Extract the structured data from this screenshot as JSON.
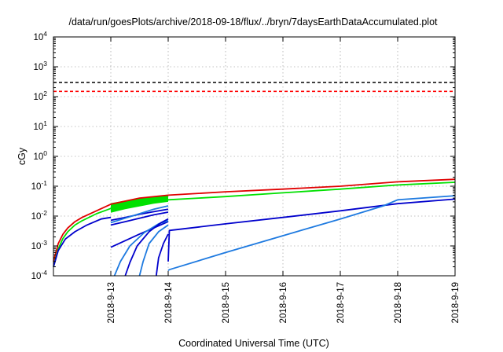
{
  "chart_data": {
    "type": "line",
    "title": "/data/run/goesPlots/archive/2018-09-18/flux/../bryn/7daysEarthDataAccumulated.plot",
    "xlabel": "Coordinated Universal Time (UTC)",
    "ylabel": "cGy",
    "scale": {
      "y": "log"
    },
    "grid": true,
    "xlim": [
      "2018-09-12",
      "2018-09-19"
    ],
    "ylim": [
      0.0001,
      10000
    ],
    "x_ticks": [
      "2018-9-13",
      "2018-9-14",
      "2018-9-15",
      "2018-9-16",
      "2018-9-17",
      "2018-9-18",
      "2018-9-19"
    ],
    "y_ticks": [
      {
        "value": 0.0001,
        "base": "10",
        "exp": "-4"
      },
      {
        "value": 0.001,
        "base": "10",
        "exp": "-3"
      },
      {
        "value": 0.01,
        "base": "10",
        "exp": "-2"
      },
      {
        "value": 0.1,
        "base": "10",
        "exp": "-1"
      },
      {
        "value": 1,
        "base": "10",
        "exp": "0"
      },
      {
        "value": 10,
        "base": "10",
        "exp": "1"
      },
      {
        "value": 100,
        "base": "10",
        "exp": "2"
      },
      {
        "value": 1000,
        "base": "10",
        "exp": "3"
      },
      {
        "value": 10000,
        "base": "10",
        "exp": "4"
      }
    ],
    "reference_lines": [
      {
        "y": 300,
        "color": "#000000",
        "style": "dashed"
      },
      {
        "y": 150,
        "color": "#ff0000",
        "style": "dashed"
      }
    ],
    "series": [
      {
        "color": "#e00000",
        "x": [
          "2018-09-12 00:00",
          "2018-09-12 02:00",
          "2018-09-12 04:00",
          "2018-09-12 06:00",
          "2018-09-12 09:00",
          "2018-09-12 12:00",
          "2018-09-12 18:00",
          "2018-09-13 00:00",
          "2018-09-13 12:00",
          "2018-09-14 00:00",
          "2018-09-15 00:00",
          "2018-09-16 00:00",
          "2018-09-17 00:00",
          "2018-09-18 00:00",
          "2018-09-19 00:00"
        ],
        "values": [
          0.0003,
          0.0012,
          0.0025,
          0.004,
          0.0065,
          0.009,
          0.015,
          0.025,
          0.04,
          0.05,
          0.065,
          0.08,
          0.1,
          0.14,
          0.17
        ]
      },
      {
        "color": "#00e000",
        "x": [
          "2018-09-12 00:00",
          "2018-09-12 02:00",
          "2018-09-12 04:00",
          "2018-09-12 06:00",
          "2018-09-12 09:00",
          "2018-09-12 12:00",
          "2018-09-12 18:00",
          "2018-09-13 00:00",
          "2018-09-13 12:00",
          "2018-09-14 00:00",
          "2018-09-15 00:00",
          "2018-09-16 00:00",
          "2018-09-17 00:00",
          "2018-09-18 00:00",
          "2018-09-19 00:00"
        ],
        "values": [
          0.0002,
          0.0008,
          0.0018,
          0.003,
          0.005,
          0.007,
          0.012,
          0.018,
          0.028,
          0.035,
          0.045,
          0.06,
          0.08,
          0.11,
          0.135
        ]
      },
      {
        "color": "#0000cc",
        "x": [
          "2018-09-12 00:00",
          "2018-09-12 02:00",
          "2018-09-12 05:00",
          "2018-09-12 09:00",
          "2018-09-12 14:00",
          "2018-09-12 20:00",
          "2018-09-13 00:00"
        ],
        "values": [
          0.0002,
          0.0007,
          0.0017,
          0.003,
          0.005,
          0.008,
          0.009
        ]
      },
      {
        "color": "#0000cc",
        "x": [
          "2018-09-13 00:00",
          "2018-09-13 06:00",
          "2018-09-13 12:00",
          "2018-09-13 18:00",
          "2018-09-14 00:00"
        ],
        "values": [
          0.0009,
          0.0015,
          0.0025,
          0.004,
          0.0065
        ]
      },
      {
        "color": "#0000cc",
        "x": [
          "2018-09-13 00:00",
          "2018-09-13 06:00",
          "2018-09-13 12:00",
          "2018-09-13 18:00",
          "2018-09-14 00:00"
        ],
        "values": [
          0.005,
          0.0065,
          0.0085,
          0.011,
          0.0135
        ]
      },
      {
        "color": "#0000cc",
        "x": [
          "2018-09-13 00:00",
          "2018-09-13 06:00",
          "2018-09-13 12:00",
          "2018-09-13 18:00",
          "2018-09-14 00:00"
        ],
        "values": [
          0.0072,
          0.009,
          0.0115,
          0.014,
          0.017
        ]
      },
      {
        "color": "#1e7ae0",
        "x": [
          "2018-09-13 00:00",
          "2018-09-13 06:00",
          "2018-09-13 12:00",
          "2018-09-13 18:00",
          "2018-09-14 00:00"
        ],
        "values": [
          0.006,
          0.0085,
          0.012,
          0.017,
          0.022
        ]
      },
      {
        "color": "#1e7ae0",
        "x": [
          "2018-09-13 01:30",
          "2018-09-13 04:00",
          "2018-09-13 08:00",
          "2018-09-13 14:00",
          "2018-09-13 20:00",
          "2018-09-14 00:00"
        ],
        "values": [
          0.0001,
          0.0003,
          0.001,
          0.0028,
          0.0055,
          0.007
        ]
      },
      {
        "color": "#0000cc",
        "x": [
          "2018-09-13 06:00",
          "2018-09-13 08:00",
          "2018-09-13 11:00",
          "2018-09-13 16:00",
          "2018-09-13 21:00",
          "2018-09-14 00:00"
        ],
        "values": [
          0.0001,
          0.00028,
          0.001,
          0.003,
          0.006,
          0.008
        ]
      },
      {
        "color": "#1e7ae0",
        "x": [
          "2018-09-13 12:00",
          "2018-09-13 13:30",
          "2018-09-13 16:00",
          "2018-09-13 20:00",
          "2018-09-14 00:00"
        ],
        "values": [
          0.0001,
          0.0003,
          0.0012,
          0.003,
          0.005
        ]
      },
      {
        "color": "#0000cc",
        "x": [
          "2018-09-13 19:00",
          "2018-09-13 20:00",
          "2018-09-13 22:00",
          "2018-09-14 00:00"
        ],
        "values": [
          0.0001,
          0.0004,
          0.0012,
          0.0025
        ]
      },
      {
        "color": "#0000cc",
        "x": [
          "2018-09-14 00:00",
          "2018-09-14 00:30",
          "2018-09-15 00:00",
          "2018-09-16 00:00",
          "2018-09-17 00:00",
          "2018-09-18 00:00",
          "2018-09-19 00:00"
        ],
        "values": [
          0.0003,
          0.0033,
          0.0055,
          0.009,
          0.015,
          0.026,
          0.037
        ]
      },
      {
        "color": "#1e7ae0",
        "x": [
          "2018-09-14 00:00",
          "2018-09-14 00:30",
          "2018-09-15 00:00",
          "2018-09-16 00:00",
          "2018-09-17 00:00",
          "2018-09-17 18:00",
          "2018-09-18 00:00",
          "2018-09-19 00:00"
        ],
        "values": [
          0.00015,
          0.00016,
          0.0006,
          0.0022,
          0.008,
          0.022,
          0.035,
          0.048
        ]
      }
    ],
    "band": {
      "color": "#00e000",
      "x": [
        "2018-09-13 00:00",
        "2018-09-13 06:00",
        "2018-09-13 12:00",
        "2018-09-13 18:00",
        "2018-09-14 00:00"
      ],
      "upper": [
        0.027,
        0.033,
        0.039,
        0.045,
        0.05
      ],
      "lower": [
        0.013,
        0.017,
        0.021,
        0.026,
        0.03
      ]
    }
  }
}
